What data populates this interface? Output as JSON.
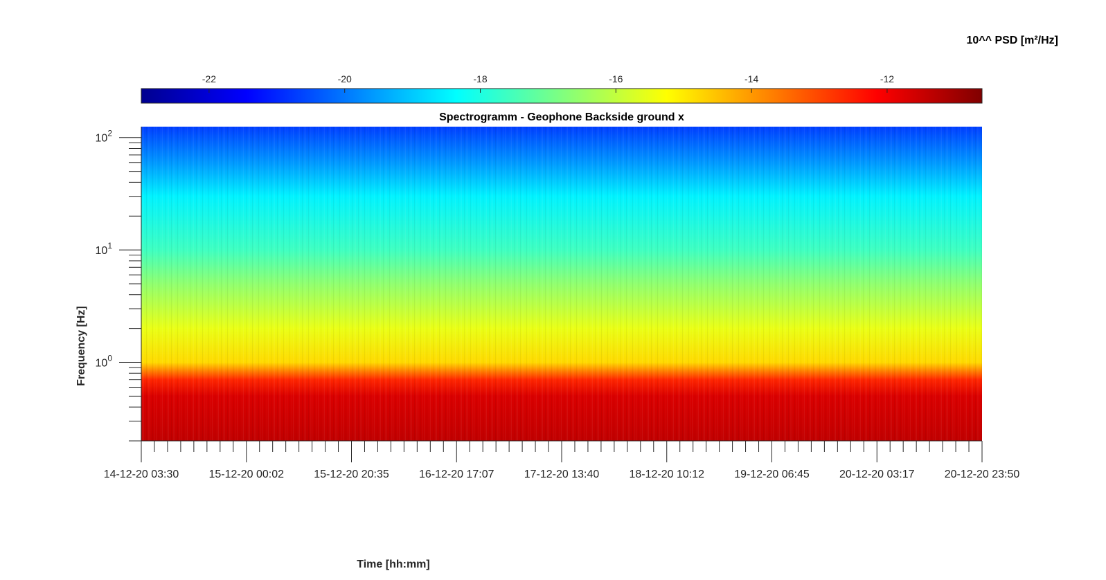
{
  "chart_data": {
    "type": "heatmap",
    "title": "Spectrogramm - Geophone Backside ground x",
    "xlabel": "Time [hh:mm]",
    "ylabel": "Frequency [Hz]",
    "colorbar_label": "10^^ PSD [m²/Hz]",
    "colormap": "jet",
    "x_ticks": [
      "14-12-20 03:30",
      "15-12-20 00:02",
      "15-12-20 20:35",
      "16-12-20 17:07",
      "17-12-20 13:40",
      "18-12-20 10:12",
      "19-12-20 06:45",
      "20-12-20 03:17",
      "20-12-20 23:50"
    ],
    "x_range": [
      "14-12-20 03:30",
      "20-12-20 23:50"
    ],
    "y_scale": "log",
    "y_range_hz": [
      0.2,
      125
    ],
    "y_ticks": [
      {
        "value": 1,
        "base": "10",
        "exp": "0"
      },
      {
        "value": 10,
        "base": "10",
        "exp": "1"
      },
      {
        "value": 100,
        "base": "10",
        "exp": "2"
      }
    ],
    "colorbar_ticks": [
      -22,
      -20,
      -18,
      -16,
      -14,
      -12
    ],
    "colorbar_range": [
      -23,
      -10.6
    ],
    "psd_log10_profile": [
      {
        "freq_hz": 0.2,
        "value": -11.4
      },
      {
        "freq_hz": 0.5,
        "value": -11.7
      },
      {
        "freq_hz": 0.7,
        "value": -12.6
      },
      {
        "freq_hz": 1.0,
        "value": -14.8
      },
      {
        "freq_hz": 2.0,
        "value": -15.5
      },
      {
        "freq_hz": 5.0,
        "value": -16.6
      },
      {
        "freq_hz": 10.0,
        "value": -17.6
      },
      {
        "freq_hz": 30.0,
        "value": -18.5
      },
      {
        "freq_hz": 60.0,
        "value": -19.6
      },
      {
        "freq_hz": 125.0,
        "value": -20.7
      }
    ]
  }
}
